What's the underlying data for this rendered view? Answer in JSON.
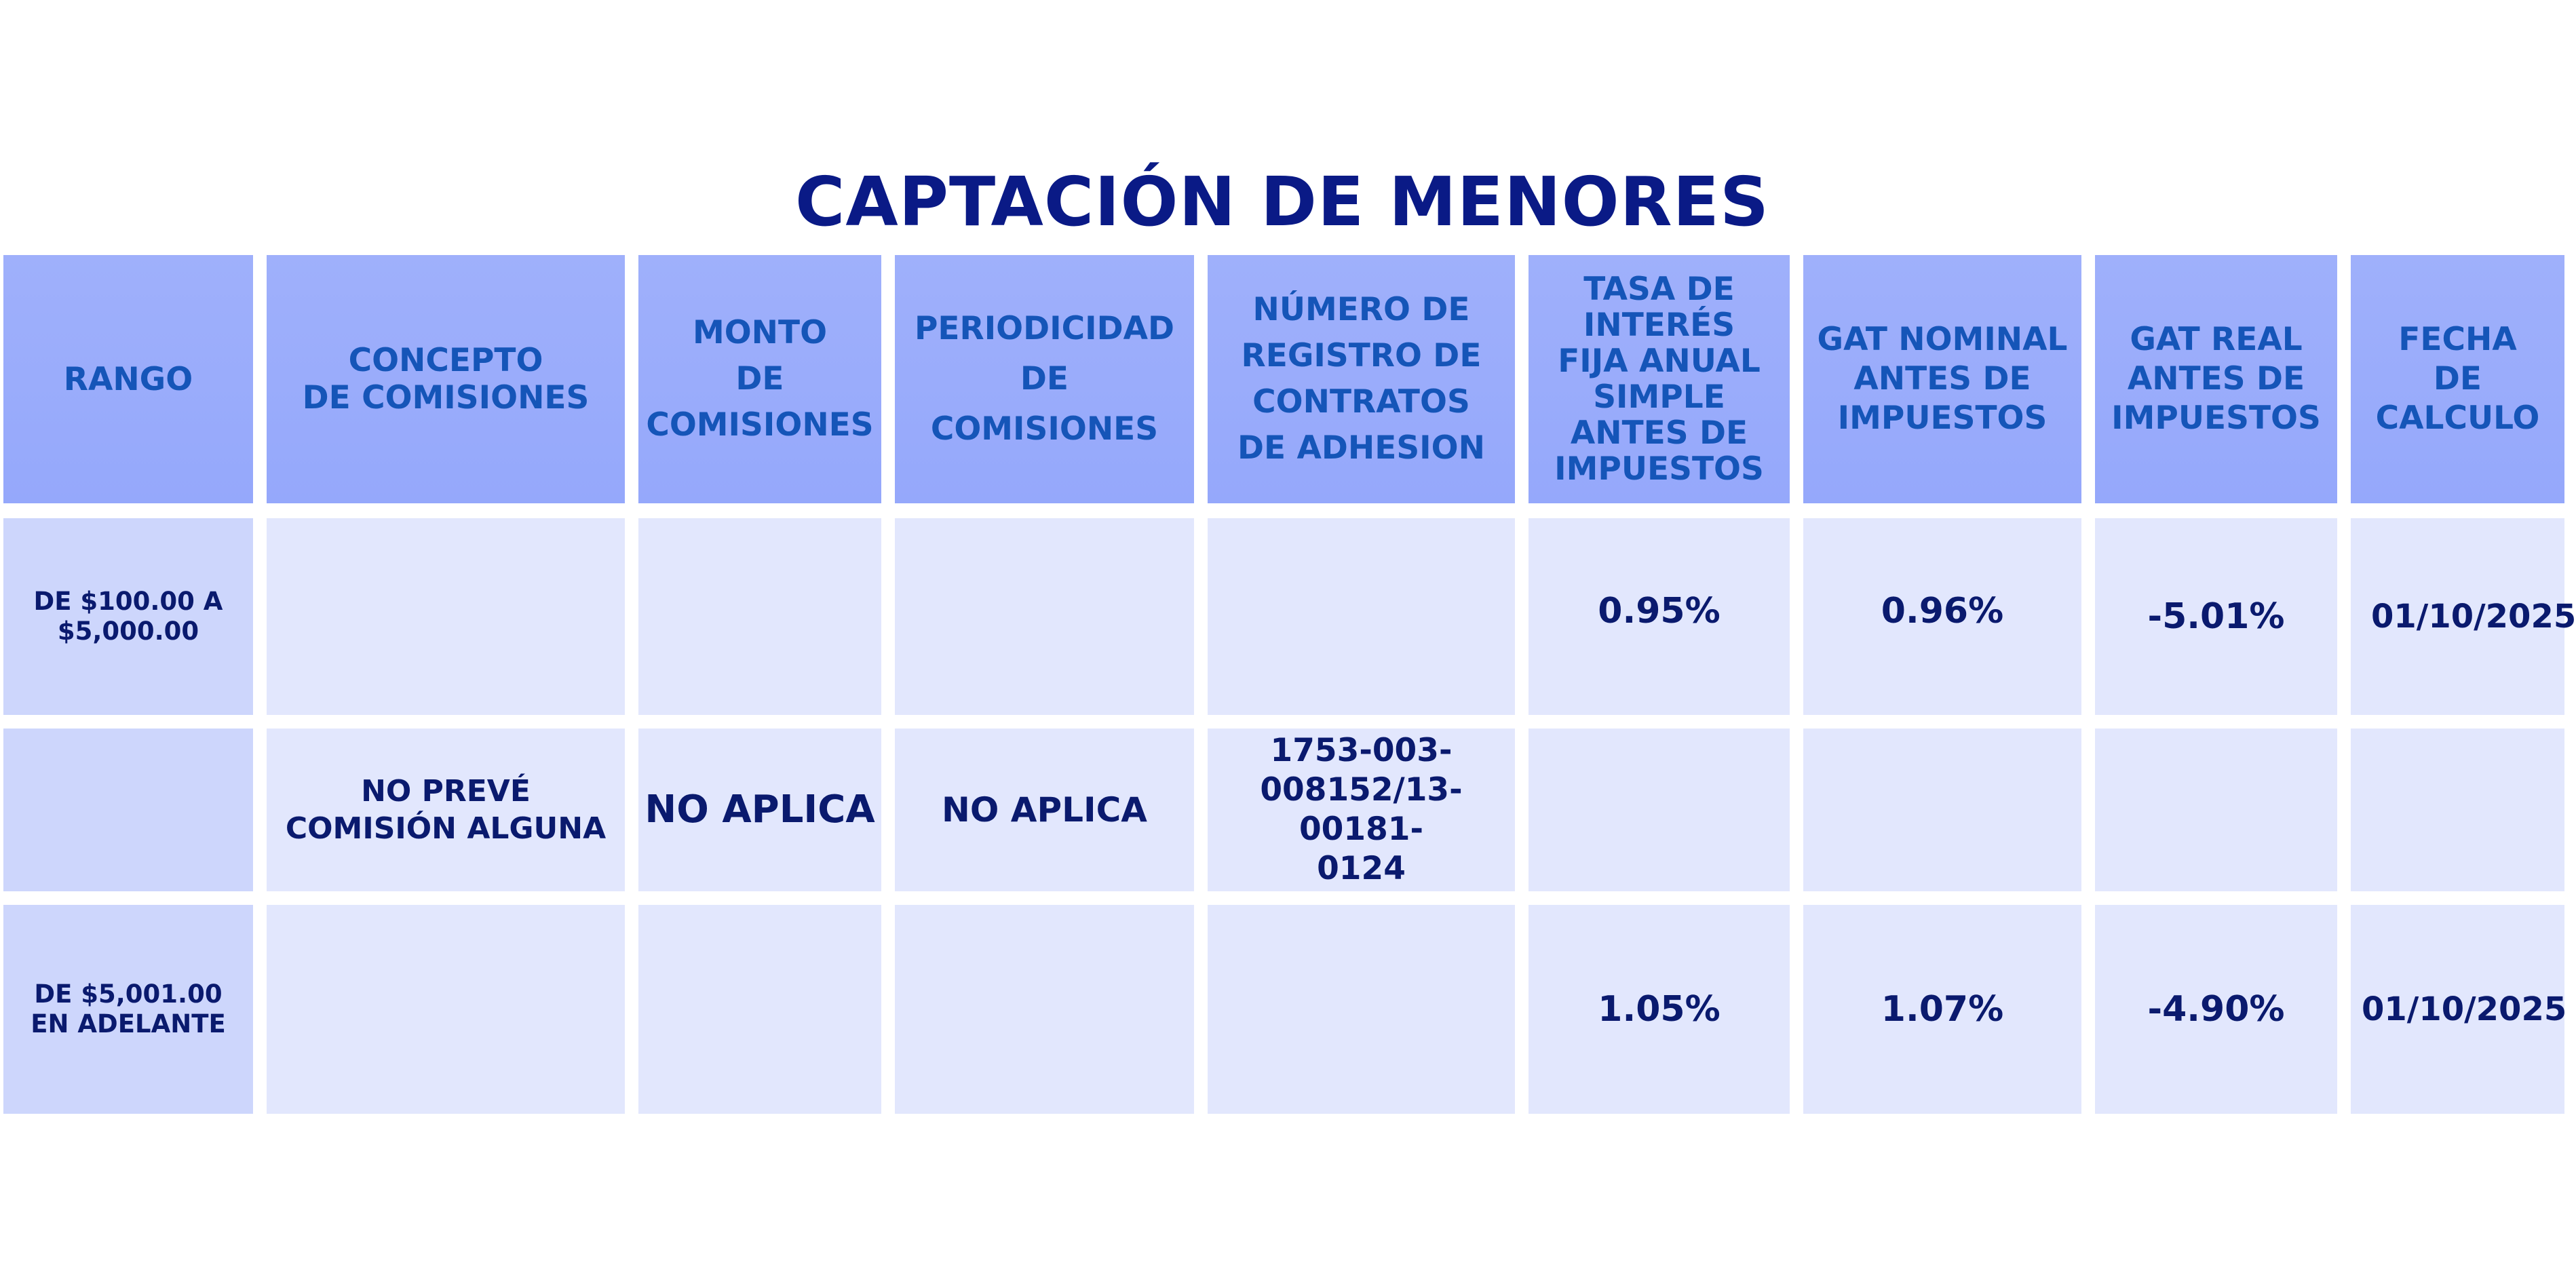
{
  "title": "CAPTACIÓN DE MENORES",
  "headers": [
    "RANGO",
    "CONCEPTO\nDE COMISIONES",
    "MONTO\nDE\nCOMISIONES",
    "PERIODICIDAD\nDE\nCOMISIONES",
    "NÚMERO DE\nREGISTRO DE\nCONTRATOS\nDE ADHESION",
    "TASA DE\nINTERÉS\nFIJA ANUAL\nSIMPLE\nANTES DE\nIMPUESTOS",
    "GAT NOMINAL\nANTES DE\nIMPUESTOS",
    "GAT REAL\nANTES DE\nIMPUESTOS",
    "FECHA\nDE\nCALCULO"
  ],
  "rows": [
    {
      "rango": "DE $100.00 A\n$5,000.00",
      "tasa": "0.95%",
      "gat_nominal": "0.96%",
      "gat_real": "-5.01%",
      "fecha": "01/10/2025"
    },
    {
      "concepto": "NO PREVÉ\nCOMISIÓN ALGUNA",
      "monto": "NO APLICA",
      "periodicidad": "NO APLICA",
      "registro": "1753-003-\n008152/13-00181-\n0124"
    },
    {
      "rango": "DE $5,001.00\nEN ADELANTE",
      "tasa": "1.05%",
      "gat_nominal": "1.07%",
      "gat_real": "-4.90%",
      "fecha": "01/10/2025"
    }
  ],
  "colors": {
    "title": "#0a1a86",
    "header_bg": "#9fb0fb",
    "header_text": "#1555b8",
    "range_bg": "#cdd6fc",
    "cell_bg": "#e2e7fd",
    "cell_text": "#0a1a6e"
  }
}
